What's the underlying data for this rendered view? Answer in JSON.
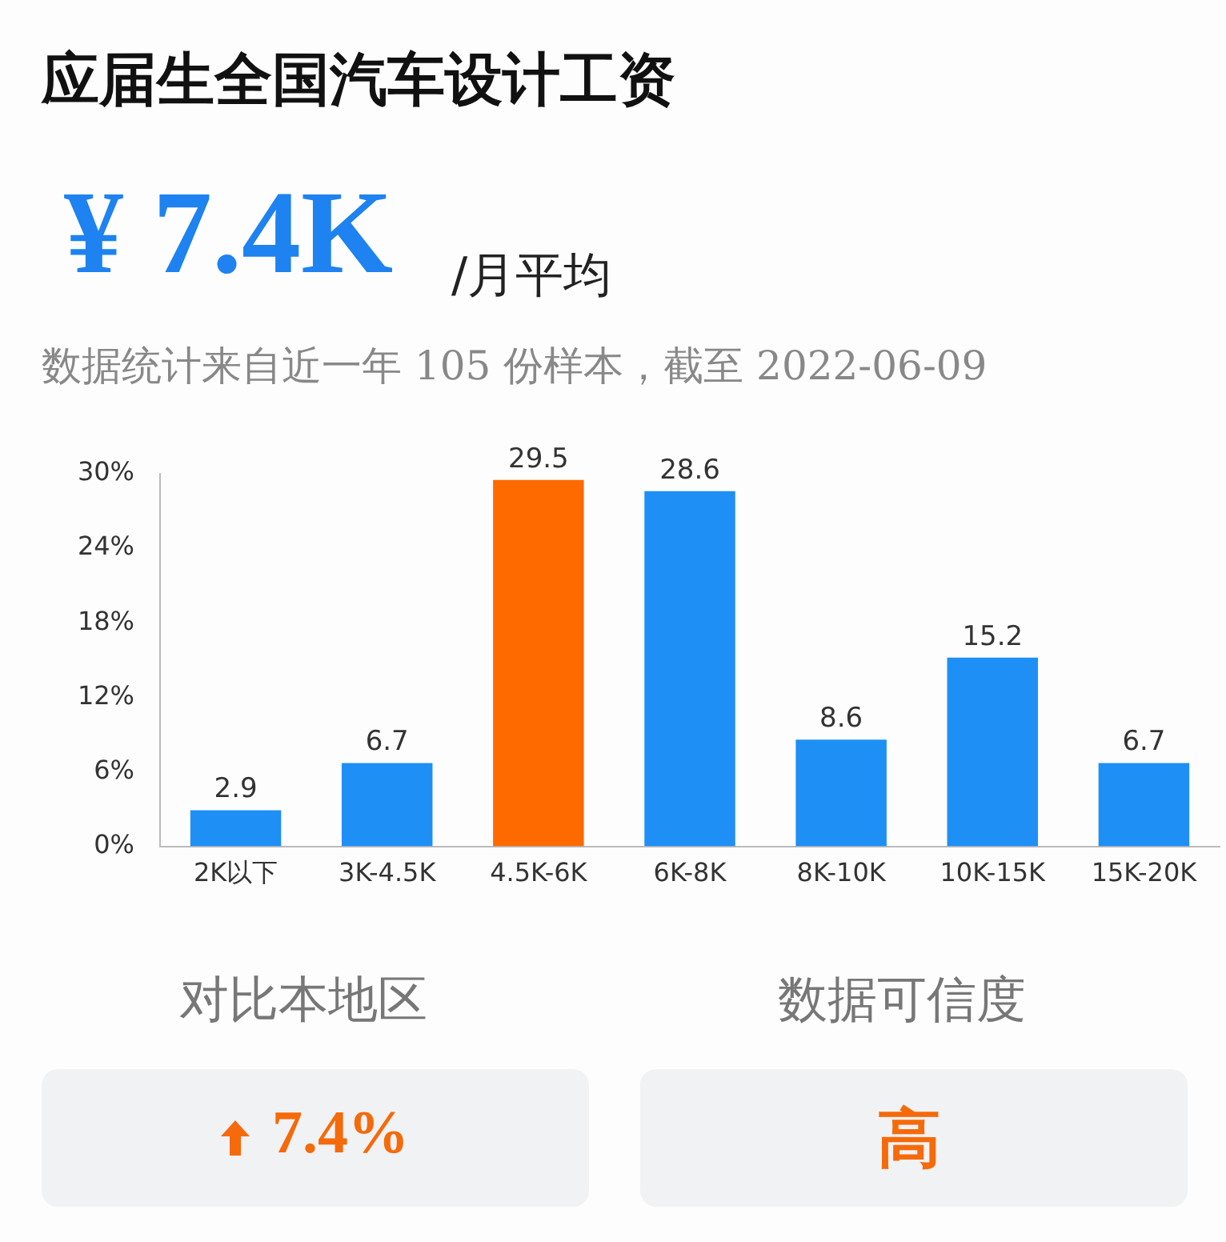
{
  "chart_data": {
    "type": "bar",
    "title": "应届生全国汽车设计工资",
    "subtitle": "数据统计来自近一年 105 份样本，截至 2022-06-09",
    "categories": [
      "2K以下",
      "3K-4.5K",
      "4.5K-6K",
      "6K-8K",
      "8K-10K",
      "10K-15K",
      "15K-20K"
    ],
    "values": [
      2.9,
      6.7,
      29.5,
      28.6,
      8.6,
      15.2,
      6.7
    ],
    "colors": [
      "#1e8ff5",
      "#1e8ff5",
      "#ff6a00",
      "#1e8ff5",
      "#1e8ff5",
      "#1e8ff5",
      "#1e8ff5"
    ],
    "ylim": [
      0,
      30
    ],
    "yticks": [
      {
        "value": 0,
        "label": "0%"
      },
      {
        "value": 6,
        "label": "6%"
      },
      {
        "value": 12,
        "label": "12%"
      },
      {
        "value": 18,
        "label": "18%"
      },
      {
        "value": 24,
        "label": "24%"
      },
      {
        "value": 30,
        "label": "30%"
      }
    ],
    "grid": false,
    "legend": false,
    "data_labels": true,
    "annotations": [
      "¥ 7.4K",
      "/月平均",
      "对比本地区",
      "7.4%",
      "数据可信度",
      "高"
    ]
  }
}
